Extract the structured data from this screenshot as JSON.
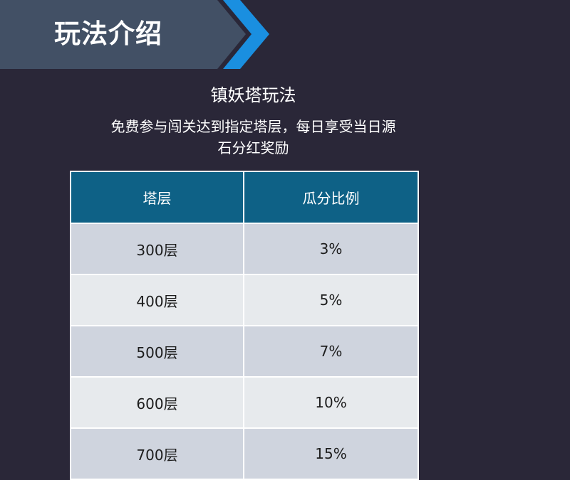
{
  "header": {
    "title": "玩法介绍"
  },
  "section": {
    "title": "镇妖塔玩法",
    "description_line1": "免费参与闯关达到指定塔层，每日享受当日源",
    "description_line2": "石分红奖励"
  },
  "table": {
    "columns": [
      "塔层",
      "瓜分比例"
    ],
    "rows": [
      {
        "floor": "300层",
        "share": "3%"
      },
      {
        "floor": "400层",
        "share": "5%"
      },
      {
        "floor": "500层",
        "share": "7%"
      },
      {
        "floor": "600层",
        "share": "10%"
      },
      {
        "floor": "700层",
        "share": "15%"
      }
    ]
  },
  "colors": {
    "background": "#2a2738",
    "banner": "#425065",
    "accent_arrow": "#1a8fe0",
    "table_header": "#0e6186",
    "row_dark": "#cfd4de",
    "row_light": "#e7eaed"
  }
}
